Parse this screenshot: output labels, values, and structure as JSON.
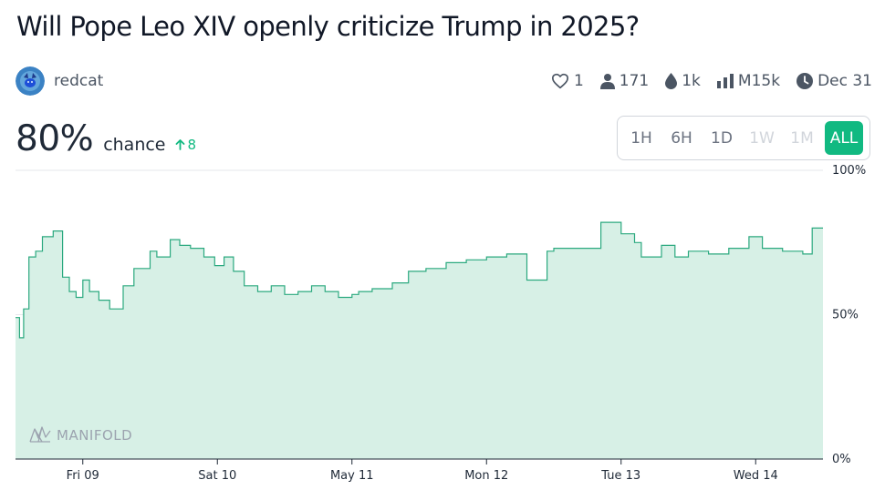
{
  "market": {
    "title": "Will Pope Leo XIV openly criticize Trump in 2025?",
    "creator": "redcat",
    "probability": "80%",
    "chance_label": "chance",
    "change": "8"
  },
  "stats": {
    "likes": "1",
    "traders": "171",
    "liquidity": "1k",
    "volume": "M15k",
    "close_date": "Dec 31"
  },
  "time_ranges": [
    {
      "label": "1H",
      "state": "enabled"
    },
    {
      "label": "6H",
      "state": "enabled"
    },
    {
      "label": "1D",
      "state": "enabled"
    },
    {
      "label": "1W",
      "state": "disabled"
    },
    {
      "label": "1M",
      "state": "disabled"
    },
    {
      "label": "ALL",
      "state": "active"
    }
  ],
  "brand": "MANIFOLD",
  "colors": {
    "accent": "#11b981",
    "line": "#2ba97f",
    "fill": "#d7f0e6"
  },
  "chart_data": {
    "type": "area",
    "x_ticks": [
      "Fri 09",
      "Sat 10",
      "May 11",
      "Mon 12",
      "Tue 13",
      "Wed 14"
    ],
    "y_ticks": [
      "100%",
      "50%",
      "0%"
    ],
    "ylim": [
      0,
      100
    ],
    "xlim": [
      8.5,
      14.5
    ],
    "grid": true,
    "x": [
      8.5,
      8.53,
      8.56,
      8.6,
      8.65,
      8.7,
      8.78,
      8.85,
      8.9,
      8.95,
      9.0,
      9.05,
      9.12,
      9.2,
      9.3,
      9.38,
      9.5,
      9.55,
      9.65,
      9.72,
      9.8,
      9.9,
      9.98,
      10.05,
      10.12,
      10.2,
      10.3,
      10.4,
      10.5,
      10.6,
      10.7,
      10.8,
      10.9,
      11.0,
      11.05,
      11.15,
      11.3,
      11.42,
      11.55,
      11.7,
      11.85,
      12.0,
      12.15,
      12.3,
      12.45,
      12.5,
      12.6,
      12.75,
      12.85,
      12.9,
      13.0,
      13.1,
      13.15,
      13.3,
      13.4,
      13.5,
      13.65,
      13.8,
      13.95,
      14.05,
      14.2,
      14.35,
      14.42,
      14.5
    ],
    "y": [
      49,
      42,
      52,
      70,
      72,
      77,
      79,
      63,
      58,
      56,
      62,
      58,
      55,
      52,
      60,
      66,
      72,
      70,
      76,
      74,
      73,
      70,
      67,
      70,
      65,
      60,
      58,
      60,
      57,
      58,
      60,
      58,
      56,
      57,
      58,
      59,
      61,
      65,
      66,
      68,
      69,
      70,
      71,
      62,
      72,
      73,
      73,
      73,
      82,
      82,
      78,
      75,
      70,
      74,
      70,
      72,
      71,
      73,
      77,
      73,
      72,
      71,
      80,
      80
    ]
  }
}
